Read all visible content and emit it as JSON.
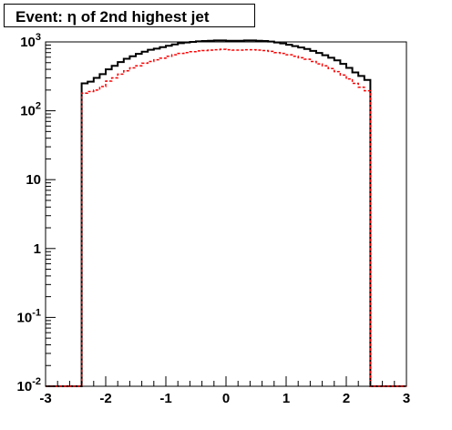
{
  "chart_data": {
    "type": "histogram",
    "title": "Event: η of 2nd highest jet",
    "xlabel": "",
    "ylabel": "",
    "xlim": [
      -3,
      3
    ],
    "ylim": [
      0.01,
      1000
    ],
    "y_scale": "log",
    "grid": false,
    "legend": "none",
    "x_tick_labels": [
      "-3",
      "-2",
      "-1",
      "0",
      "1",
      "2",
      "3"
    ],
    "y_tick_labels": [
      {
        "value": 0.01,
        "base": "10",
        "exp": "-2"
      },
      {
        "value": 0.1,
        "base": "10",
        "exp": "-1"
      },
      {
        "value": 1,
        "base": "1",
        "exp": ""
      },
      {
        "value": 10,
        "base": "10",
        "exp": ""
      },
      {
        "value": 100,
        "base": "10",
        "exp": "2"
      },
      {
        "value": 1000,
        "base": "10",
        "exp": "3"
      }
    ],
    "bin_edges": [
      -3.0,
      -2.9,
      -2.8,
      -2.7,
      -2.6,
      -2.5,
      -2.4,
      -2.3,
      -2.2,
      -2.1,
      -2.0,
      -1.9,
      -1.8,
      -1.7,
      -1.6,
      -1.5,
      -1.4,
      -1.3,
      -1.2,
      -1.1,
      -1.0,
      -0.9,
      -0.8,
      -0.7,
      -0.6,
      -0.5,
      -0.4,
      -0.3,
      -0.2,
      -0.1,
      0.0,
      0.1,
      0.2,
      0.3,
      0.4,
      0.5,
      0.6,
      0.7,
      0.8,
      0.9,
      1.0,
      1.1,
      1.2,
      1.3,
      1.4,
      1.5,
      1.6,
      1.7,
      1.8,
      1.9,
      2.0,
      2.1,
      2.2,
      2.3,
      2.4,
      2.5,
      2.6,
      2.7,
      2.8,
      2.9,
      3.0
    ],
    "series": [
      {
        "color": "#000000",
        "style": "solid",
        "values": [
          0.01,
          0.01,
          0.01,
          0.01,
          0.01,
          0.01,
          250,
          265,
          300,
          340,
          400,
          450,
          510,
          570,
          620,
          670,
          720,
          770,
          800,
          840,
          880,
          920,
          960,
          980,
          1000,
          1020,
          1030,
          1040,
          1050,
          1050,
          1040,
          1040,
          1040,
          1050,
          1050,
          1040,
          1030,
          1010,
          980,
          950,
          910,
          870,
          830,
          790,
          740,
          690,
          640,
          590,
          540,
          480,
          420,
          360,
          320,
          280,
          0.01,
          0.01,
          0.01,
          0.01,
          0.01,
          0.01
        ]
      },
      {
        "color": "#ff0000",
        "style": "dashed",
        "values": [
          0.01,
          0.01,
          0.01,
          0.01,
          0.01,
          0.01,
          180,
          190,
          200,
          225,
          270,
          300,
          340,
          380,
          420,
          450,
          490,
          520,
          550,
          580,
          620,
          650,
          680,
          700,
          720,
          740,
          750,
          760,
          770,
          780,
          770,
          760,
          760,
          770,
          770,
          760,
          750,
          730,
          700,
          680,
          650,
          620,
          590,
          560,
          520,
          480,
          450,
          410,
          370,
          330,
          290,
          250,
          220,
          195,
          0.01,
          0.01,
          0.01,
          0.01,
          0.01,
          0.01
        ]
      }
    ]
  }
}
